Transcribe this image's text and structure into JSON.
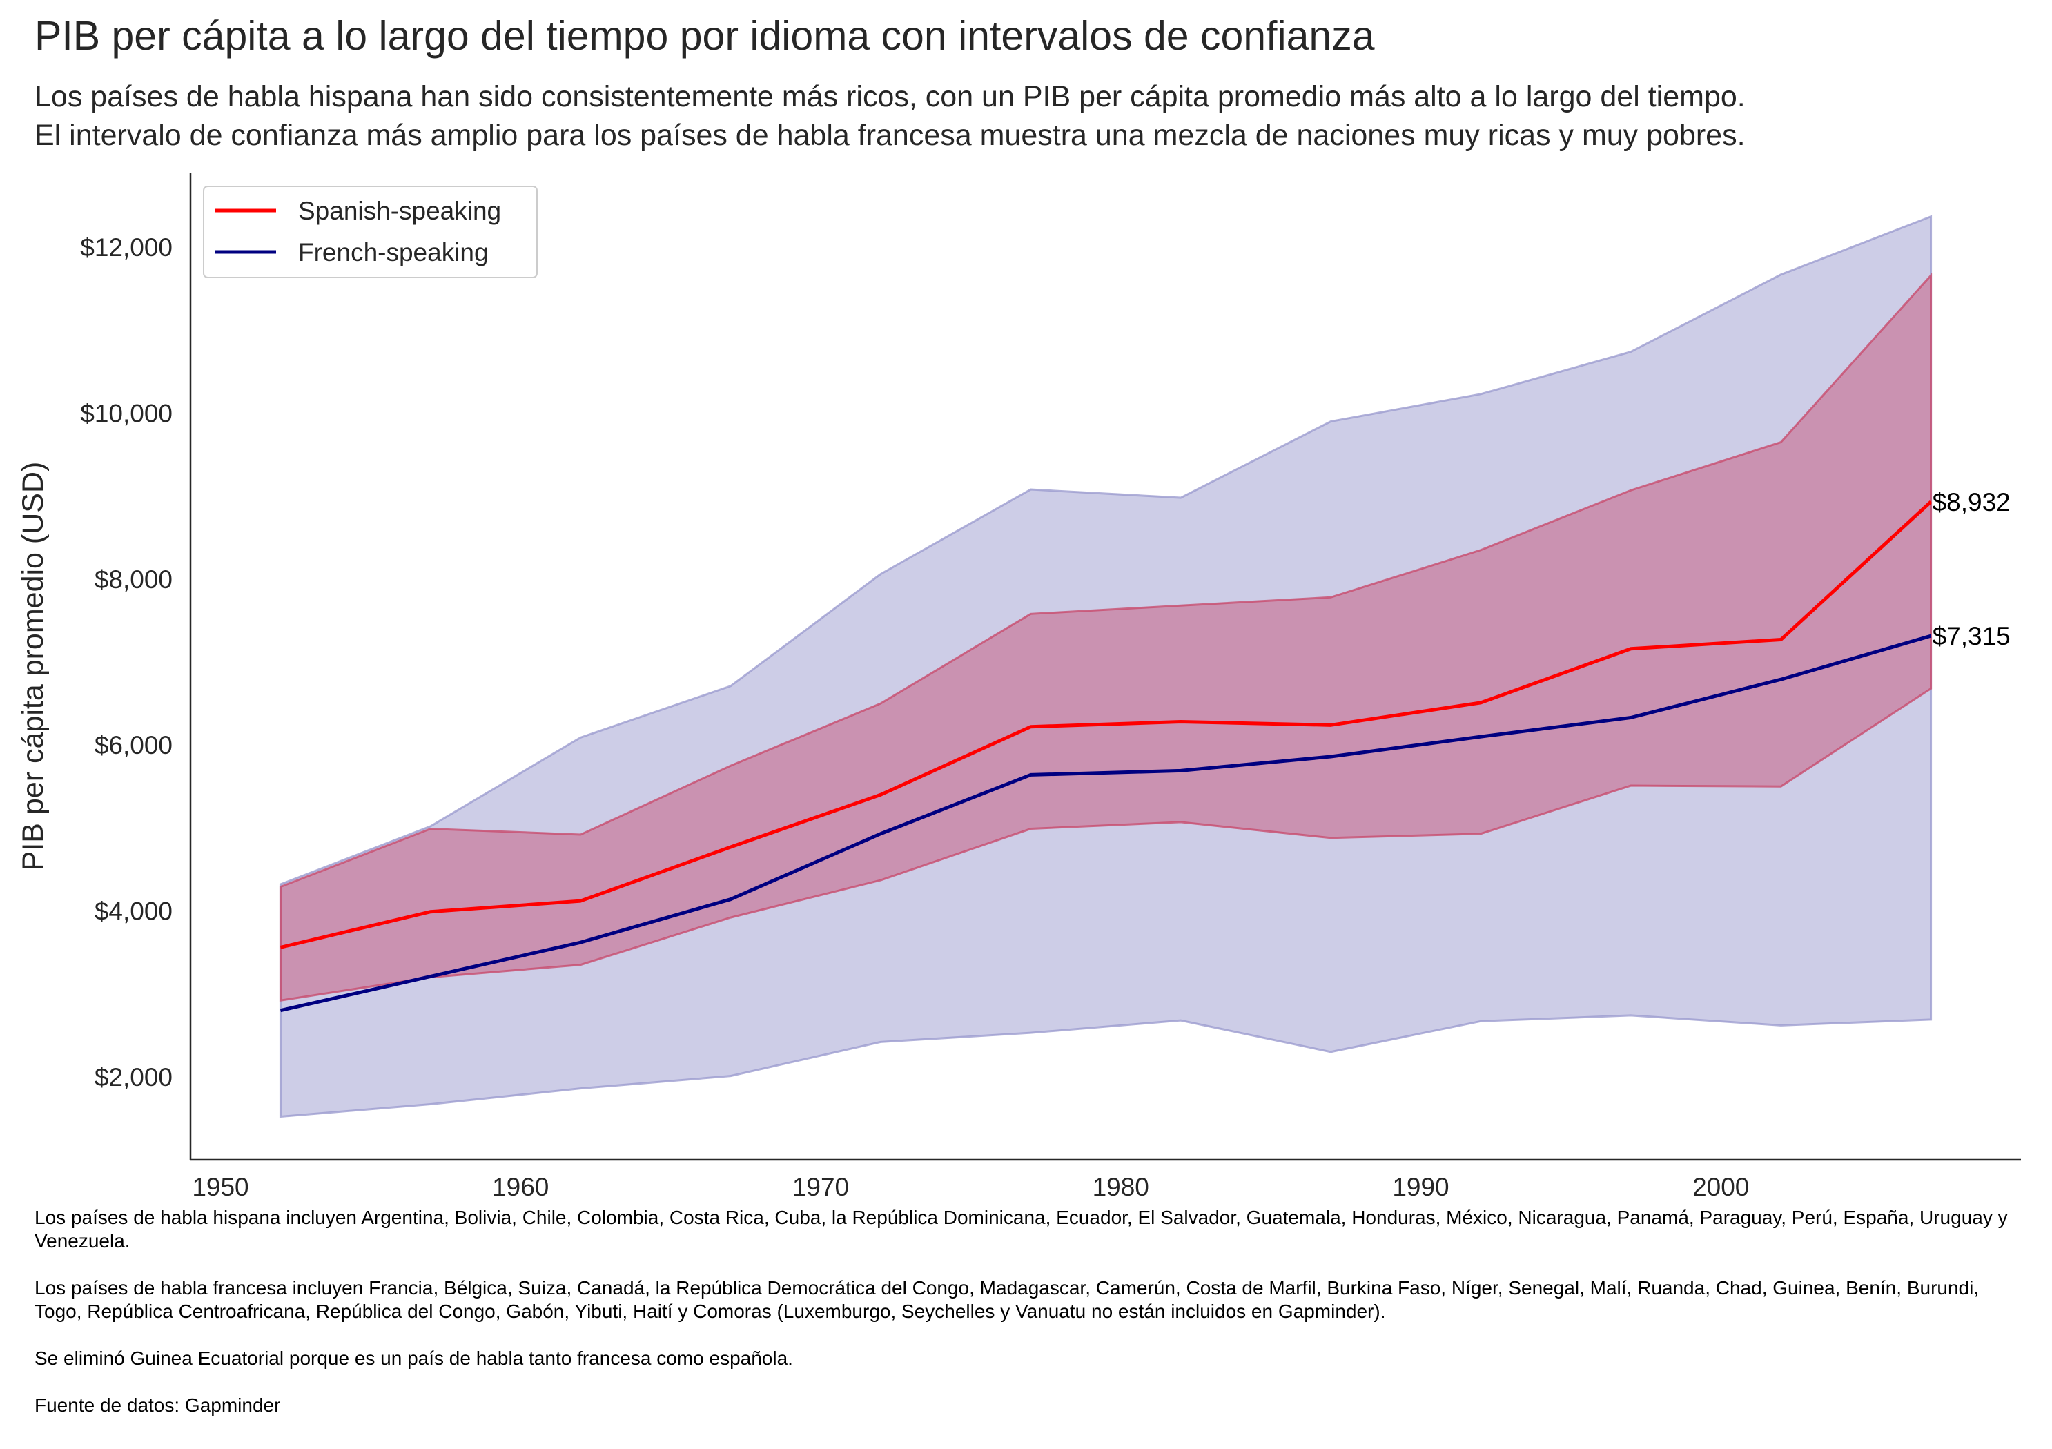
{
  "chart_data": {
    "type": "line",
    "title": "PIB per cápita a lo largo del tiempo por idioma con intervalos de confianza",
    "subtitle": [
      "Los países de habla hispana han sido consistentemente más ricos, con un PIB per cápita promedio más alto a lo largo del tiempo.",
      "El intervalo de confianza más amplio para los países de habla francesa muestra una mezcla de naciones muy ricas y muy pobres."
    ],
    "ylabel": "PIB per cápita promedio (USD)",
    "xlabel": "",
    "xlim": [
      1949,
      2010
    ],
    "ylim": [
      1000,
      12900
    ],
    "x_ticks": [
      1950,
      1960,
      1970,
      1980,
      1990,
      2000
    ],
    "y_ticks": [
      2000,
      4000,
      6000,
      8000,
      10000,
      12000
    ],
    "y_tick_labels": [
      "$2,000",
      "$4,000",
      "$6,000",
      "$8,000",
      "$10,000",
      "$12,000"
    ],
    "grid": false,
    "legend_position": "top-left",
    "x": [
      1952,
      1957,
      1962,
      1967,
      1972,
      1977,
      1982,
      1987,
      1992,
      1997,
      2002,
      2007
    ],
    "series": [
      {
        "name": "Spanish-speaking",
        "color": "#ff0000",
        "band_color": "#c84c6e",
        "values": [
          3560,
          3990,
          4120,
          4770,
          5400,
          6220,
          6280,
          6240,
          6510,
          7160,
          7270,
          8932
        ],
        "ci_low": [
          2920,
          3200,
          3350,
          3920,
          4370,
          4990,
          5070,
          4880,
          4930,
          5510,
          5500,
          6680
        ],
        "ci_high": [
          4290,
          4990,
          4920,
          5750,
          6500,
          7580,
          7680,
          7780,
          8350,
          9070,
          9650,
          11660
        ],
        "end_label": "$8,932"
      },
      {
        "name": "French-speaking",
        "color": "#000080",
        "band_color": "#9c9ccf",
        "values": [
          2800,
          3210,
          3620,
          4140,
          4930,
          5640,
          5690,
          5860,
          6100,
          6330,
          6790,
          7315
        ],
        "ci_low": [
          1520,
          1670,
          1860,
          2010,
          2420,
          2530,
          2680,
          2300,
          2670,
          2740,
          2620,
          2690
        ],
        "ci_high": [
          4320,
          5020,
          6090,
          6710,
          8060,
          9080,
          8980,
          9900,
          10230,
          10740,
          11670,
          12370
        ],
        "end_label": "$7,315"
      }
    ]
  },
  "notes": [
    "Los países de habla hispana incluyen Argentina, Bolivia, Chile, Colombia, Costa Rica, Cuba, la República Dominicana, Ecuador, El Salvador, Guatemala, Honduras, México, Nicaragua, Panamá, Paraguay, Perú, España, Uruguay y Venezuela.",
    "Los países de habla francesa incluyen Francia, Bélgica, Suiza, Canadá, la República Democrática del Congo, Madagascar, Camerún, Costa de Marfil, Burkina Faso, Níger, Senegal, Malí, Ruanda, Chad, Guinea, Benín, Burundi, Togo, República Centroafricana, República del Congo, Gabón, Yibuti, Haití y Comoras (Luxemburgo, Seychelles y Vanuatu no están incluidos en Gapminder).",
    "Se eliminó Guinea Ecuatorial porque es un país de habla tanto francesa como española.",
    "Fuente de datos: Gapminder"
  ]
}
